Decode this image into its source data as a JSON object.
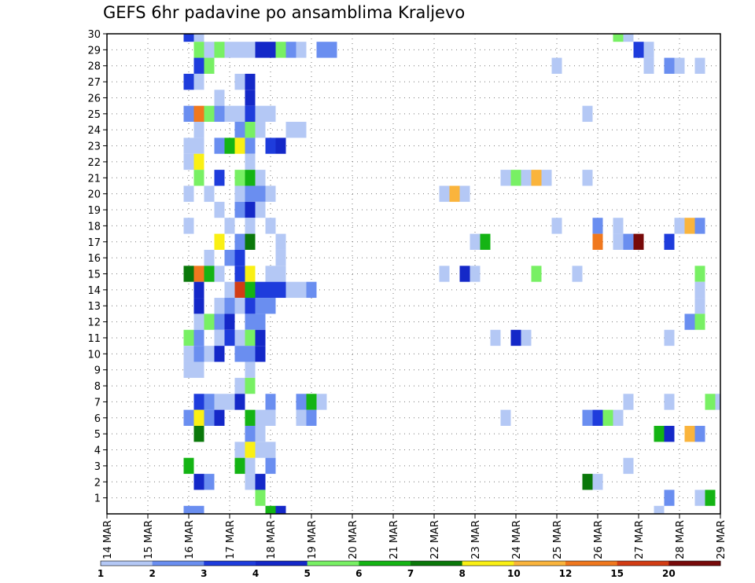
{
  "chart_data": {
    "type": "heatmap",
    "title": "GEFS 6hr padavine po ansamblima Kraljevo",
    "xlabel": "",
    "ylabel": "",
    "grid": true,
    "x_tick_labels": [
      "14 MAR",
      "15 MAR",
      "16 MAR",
      "17 MAR",
      "18 MAR",
      "19 MAR",
      "20 MAR",
      "21 MAR",
      "22 MAR",
      "23 MAR",
      "24 MAR",
      "25 MAR",
      "26 MAR",
      "27 MAR",
      "28 MAR",
      "29 MAR"
    ],
    "x_steps_per_day": 4,
    "x_range_steps": [
      0,
      60
    ],
    "y_tick_labels": [
      "1",
      "2",
      "3",
      "4",
      "5",
      "6",
      "7",
      "8",
      "9",
      "10",
      "11",
      "12",
      "13",
      "14",
      "15",
      "16",
      "17",
      "18",
      "19",
      "20",
      "21",
      "22",
      "23",
      "24",
      "25",
      "26",
      "27",
      "28",
      "29",
      "30"
    ],
    "y_range": [
      0,
      30
    ],
    "legend_levels": [
      "1",
      "2",
      "3",
      "4",
      "5",
      "6",
      "7",
      "8",
      "10",
      "12",
      "15",
      "20"
    ],
    "legend_colors": [
      "#b4c8f5",
      "#6a8ef0",
      "#1e3cdc",
      "#1428c8",
      "#78f064",
      "#14b414",
      "#0a780a",
      "#faf014",
      "#fab43c",
      "#f0781e",
      "#d23c14",
      "#780a0a"
    ],
    "cells": [
      [
        30,
        8,
        2
      ],
      [
        30,
        9,
        0
      ],
      [
        30,
        50,
        4
      ],
      [
        30,
        51,
        0
      ],
      [
        29,
        9,
        4
      ],
      [
        29,
        10,
        0
      ],
      [
        29,
        11,
        4
      ],
      [
        29,
        12,
        0
      ],
      [
        29,
        13,
        0
      ],
      [
        29,
        14,
        0
      ],
      [
        29,
        15,
        3
      ],
      [
        29,
        16,
        3
      ],
      [
        29,
        17,
        4
      ],
      [
        29,
        18,
        1
      ],
      [
        29,
        19,
        0
      ],
      [
        29,
        21,
        1
      ],
      [
        29,
        22,
        1
      ],
      [
        29,
        52,
        2
      ],
      [
        29,
        53,
        0
      ],
      [
        28,
        9,
        2
      ],
      [
        28,
        10,
        4
      ],
      [
        28,
        44,
        0
      ],
      [
        28,
        53,
        0
      ],
      [
        28,
        55,
        1
      ],
      [
        28,
        56,
        0
      ],
      [
        28,
        58,
        0
      ],
      [
        27,
        8,
        2
      ],
      [
        27,
        9,
        0
      ],
      [
        27,
        13,
        0
      ],
      [
        27,
        14,
        3
      ],
      [
        26,
        11,
        0
      ],
      [
        26,
        14,
        3
      ],
      [
        25,
        8,
        1
      ],
      [
        25,
        9,
        9
      ],
      [
        25,
        10,
        4
      ],
      [
        25,
        11,
        1
      ],
      [
        25,
        12,
        0
      ],
      [
        25,
        13,
        0
      ],
      [
        25,
        14,
        2
      ],
      [
        25,
        15,
        0
      ],
      [
        25,
        16,
        0
      ],
      [
        25,
        47,
        0
      ],
      [
        24,
        9,
        0
      ],
      [
        24,
        13,
        1
      ],
      [
        24,
        14,
        4
      ],
      [
        24,
        15,
        0
      ],
      [
        24,
        18,
        0
      ],
      [
        24,
        19,
        0
      ],
      [
        23,
        8,
        0
      ],
      [
        23,
        9,
        0
      ],
      [
        23,
        11,
        1
      ],
      [
        23,
        12,
        5
      ],
      [
        23,
        13,
        7
      ],
      [
        23,
        14,
        1
      ],
      [
        23,
        16,
        2
      ],
      [
        23,
        17,
        3
      ],
      [
        22,
        8,
        0
      ],
      [
        22,
        9,
        7
      ],
      [
        22,
        14,
        0
      ],
      [
        21,
        9,
        4
      ],
      [
        21,
        11,
        2
      ],
      [
        21,
        13,
        4
      ],
      [
        21,
        14,
        5
      ],
      [
        21,
        15,
        0
      ],
      [
        21,
        39,
        0
      ],
      [
        21,
        40,
        4
      ],
      [
        21,
        41,
        0
      ],
      [
        21,
        42,
        8
      ],
      [
        21,
        43,
        0
      ],
      [
        21,
        47,
        0
      ],
      [
        20,
        8,
        0
      ],
      [
        20,
        10,
        0
      ],
      [
        20,
        13,
        0
      ],
      [
        20,
        14,
        1
      ],
      [
        20,
        15,
        1
      ],
      [
        20,
        16,
        0
      ],
      [
        20,
        33,
        0
      ],
      [
        20,
        34,
        8
      ],
      [
        20,
        35,
        0
      ],
      [
        19,
        11,
        0
      ],
      [
        19,
        13,
        1
      ],
      [
        19,
        14,
        3
      ],
      [
        19,
        15,
        0
      ],
      [
        18,
        8,
        0
      ],
      [
        18,
        12,
        0
      ],
      [
        18,
        14,
        0
      ],
      [
        18,
        16,
        0
      ],
      [
        18,
        44,
        0
      ],
      [
        18,
        48,
        1
      ],
      [
        18,
        50,
        0
      ],
      [
        18,
        56,
        0
      ],
      [
        18,
        57,
        8
      ],
      [
        18,
        58,
        1
      ],
      [
        17,
        11,
        7
      ],
      [
        17,
        13,
        1
      ],
      [
        17,
        14,
        6
      ],
      [
        17,
        17,
        0
      ],
      [
        17,
        36,
        0
      ],
      [
        17,
        37,
        5
      ],
      [
        17,
        48,
        9
      ],
      [
        17,
        50,
        0
      ],
      [
        17,
        51,
        1
      ],
      [
        17,
        52,
        11
      ],
      [
        17,
        55,
        2
      ],
      [
        16,
        10,
        0
      ],
      [
        16,
        12,
        1
      ],
      [
        16,
        13,
        2
      ],
      [
        16,
        17,
        0
      ],
      [
        15,
        8,
        6
      ],
      [
        15,
        9,
        9
      ],
      [
        15,
        10,
        5
      ],
      [
        15,
        11,
        0
      ],
      [
        15,
        13,
        2
      ],
      [
        15,
        14,
        7
      ],
      [
        15,
        16,
        0
      ],
      [
        15,
        17,
        0
      ],
      [
        15,
        33,
        0
      ],
      [
        15,
        35,
        3
      ],
      [
        15,
        36,
        0
      ],
      [
        15,
        42,
        4
      ],
      [
        15,
        46,
        0
      ],
      [
        15,
        58,
        4
      ],
      [
        14,
        9,
        3
      ],
      [
        14,
        12,
        0
      ],
      [
        14,
        13,
        10
      ],
      [
        14,
        14,
        5
      ],
      [
        14,
        15,
        2
      ],
      [
        14,
        16,
        2
      ],
      [
        14,
        17,
        2
      ],
      [
        14,
        18,
        0
      ],
      [
        14,
        19,
        0
      ],
      [
        14,
        20,
        1
      ],
      [
        14,
        58,
        0
      ],
      [
        13,
        9,
        3
      ],
      [
        13,
        11,
        0
      ],
      [
        13,
        12,
        1
      ],
      [
        13,
        13,
        0
      ],
      [
        13,
        14,
        2
      ],
      [
        13,
        15,
        1
      ],
      [
        13,
        16,
        1
      ],
      [
        13,
        58,
        0
      ],
      [
        12,
        9,
        0
      ],
      [
        12,
        10,
        4
      ],
      [
        12,
        11,
        1
      ],
      [
        12,
        12,
        3
      ],
      [
        12,
        14,
        1
      ],
      [
        12,
        15,
        1
      ],
      [
        12,
        57,
        1
      ],
      [
        12,
        58,
        4
      ],
      [
        11,
        8,
        4
      ],
      [
        11,
        9,
        1
      ],
      [
        11,
        11,
        0
      ],
      [
        11,
        12,
        2
      ],
      [
        11,
        13,
        0
      ],
      [
        11,
        14,
        4
      ],
      [
        11,
        15,
        3
      ],
      [
        11,
        38,
        0
      ],
      [
        11,
        40,
        3
      ],
      [
        11,
        41,
        0
      ],
      [
        11,
        55,
        0
      ],
      [
        10,
        8,
        0
      ],
      [
        10,
        9,
        1
      ],
      [
        10,
        10,
        0
      ],
      [
        10,
        11,
        3
      ],
      [
        10,
        13,
        1
      ],
      [
        10,
        14,
        1
      ],
      [
        10,
        15,
        3
      ],
      [
        9,
        8,
        0
      ],
      [
        9,
        9,
        0
      ],
      [
        9,
        14,
        0
      ],
      [
        8,
        13,
        0
      ],
      [
        8,
        14,
        4
      ],
      [
        7,
        9,
        2
      ],
      [
        7,
        10,
        1
      ],
      [
        7,
        11,
        0
      ],
      [
        7,
        12,
        0
      ],
      [
        7,
        13,
        3
      ],
      [
        7,
        16,
        1
      ],
      [
        7,
        19,
        1
      ],
      [
        7,
        20,
        5
      ],
      [
        7,
        21,
        0
      ],
      [
        7,
        51,
        0
      ],
      [
        7,
        55,
        0
      ],
      [
        7,
        59,
        4
      ],
      [
        7,
        60,
        0
      ],
      [
        6,
        8,
        1
      ],
      [
        6,
        9,
        7
      ],
      [
        6,
        10,
        1
      ],
      [
        6,
        11,
        3
      ],
      [
        6,
        14,
        5
      ],
      [
        6,
        15,
        0
      ],
      [
        6,
        16,
        0
      ],
      [
        6,
        19,
        0
      ],
      [
        6,
        20,
        1
      ],
      [
        6,
        39,
        0
      ],
      [
        6,
        47,
        1
      ],
      [
        6,
        48,
        2
      ],
      [
        6,
        49,
        4
      ],
      [
        6,
        50,
        0
      ],
      [
        5,
        9,
        6
      ],
      [
        5,
        14,
        1
      ],
      [
        5,
        15,
        0
      ],
      [
        5,
        54,
        5
      ],
      [
        5,
        55,
        3
      ],
      [
        5,
        57,
        8
      ],
      [
        5,
        58,
        1
      ],
      [
        4,
        13,
        0
      ],
      [
        4,
        14,
        7
      ],
      [
        4,
        15,
        0
      ],
      [
        4,
        16,
        0
      ],
      [
        3,
        8,
        5
      ],
      [
        3,
        13,
        5
      ],
      [
        3,
        14,
        0
      ],
      [
        3,
        16,
        1
      ],
      [
        3,
        51,
        0
      ],
      [
        2,
        9,
        3
      ],
      [
        2,
        10,
        1
      ],
      [
        2,
        14,
        0
      ],
      [
        2,
        15,
        3
      ],
      [
        2,
        47,
        6
      ],
      [
        2,
        48,
        0
      ],
      [
        1,
        15,
        4
      ],
      [
        1,
        55,
        1
      ],
      [
        1,
        58,
        0
      ],
      [
        1,
        59,
        5
      ],
      [
        0,
        8,
        1
      ],
      [
        0,
        9,
        1
      ],
      [
        0,
        16,
        5
      ],
      [
        0,
        17,
        3
      ],
      [
        0,
        54,
        0
      ]
    ]
  }
}
